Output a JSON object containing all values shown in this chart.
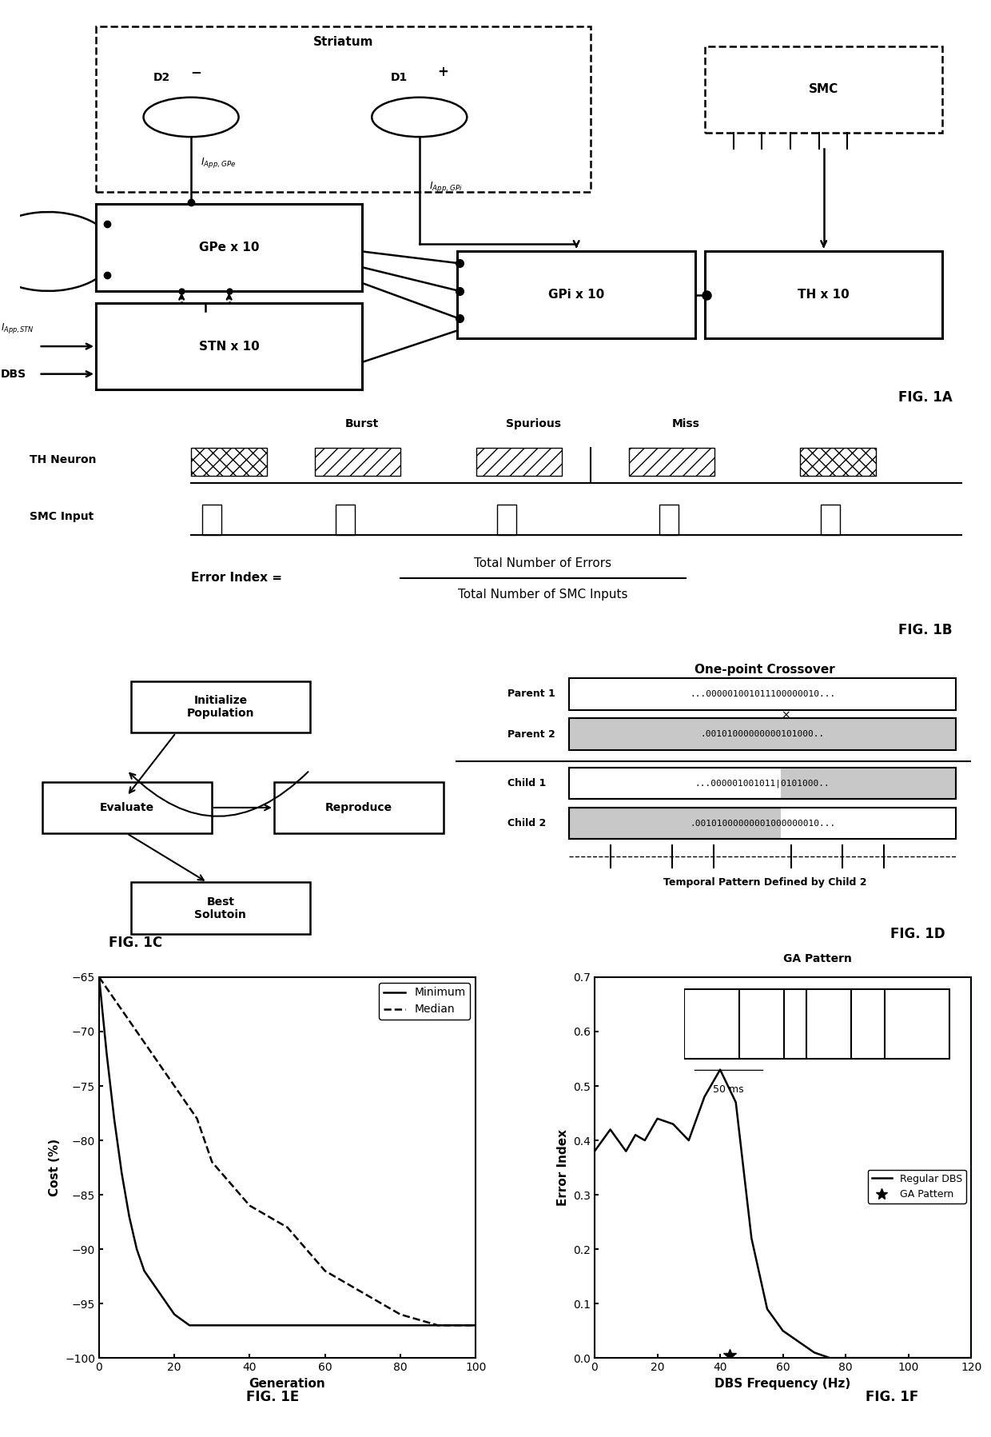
{
  "fig_width": 12.4,
  "fig_height": 17.97,
  "fig1e_gen": [
    0,
    2,
    4,
    6,
    8,
    10,
    12,
    14,
    16,
    18,
    20,
    22,
    24,
    26,
    28,
    30,
    35,
    40,
    45,
    50,
    55,
    60,
    70,
    80,
    90,
    100
  ],
  "fig1e_min": [
    -65,
    -72,
    -78,
    -83,
    -87,
    -90,
    -92,
    -93,
    -94,
    -95,
    -96,
    -96.5,
    -97,
    -97,
    -97,
    -97,
    -97,
    -97,
    -97,
    -97,
    -97,
    -97,
    -97,
    -97,
    -97,
    -97
  ],
  "fig1e_med": [
    -65,
    -66,
    -67,
    -68,
    -69,
    -70,
    -71,
    -72,
    -73,
    -74,
    -75,
    -76,
    -77,
    -78,
    -80,
    -82,
    -84,
    -86,
    -87,
    -88,
    -90,
    -92,
    -94,
    -96,
    -97,
    -97
  ],
  "fig1f_freq": [
    0,
    5,
    10,
    13,
    16,
    20,
    25,
    30,
    35,
    40,
    45,
    50,
    55,
    60,
    65,
    70,
    75,
    80,
    90,
    100,
    110,
    120
  ],
  "fig1f_error": [
    0.38,
    0.42,
    0.38,
    0.41,
    0.4,
    0.44,
    0.43,
    0.4,
    0.48,
    0.53,
    0.47,
    0.22,
    0.09,
    0.05,
    0.03,
    0.01,
    0.0,
    0.0,
    0.0,
    0.0,
    0.0,
    0.0
  ],
  "fig1f_ga_freq": 43,
  "fig1f_ga_error": 0.005
}
